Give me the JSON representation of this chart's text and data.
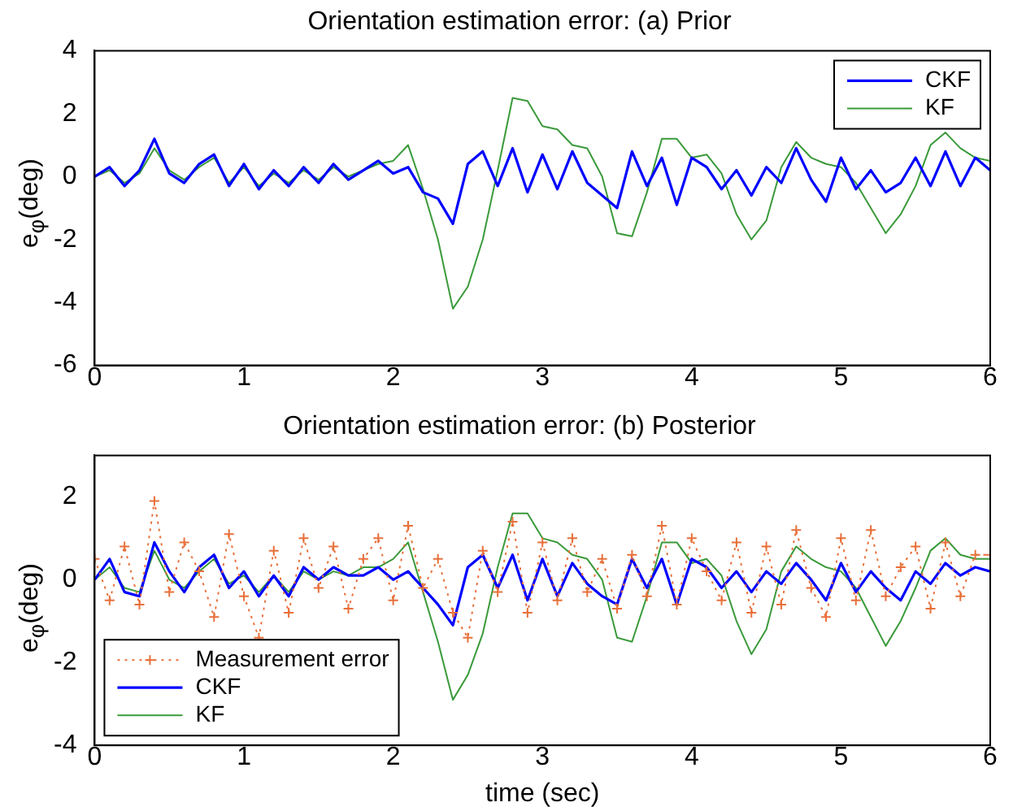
{
  "chart_data": [
    {
      "type": "line",
      "title": "Orientation estimation error: (a) Prior",
      "ylabel": "e$_{φ}$(deg)",
      "x": [
        0,
        0.1,
        0.2,
        0.3,
        0.4,
        0.5,
        0.6,
        0.7,
        0.8,
        0.9,
        1,
        1.1,
        1.2,
        1.3,
        1.4,
        1.5,
        1.6,
        1.7,
        1.8,
        1.9,
        2,
        2.1,
        2.2,
        2.3,
        2.4,
        2.5,
        2.6,
        2.7,
        2.8,
        2.9,
        3,
        3.1,
        3.2,
        3.3,
        3.4,
        3.5,
        3.6,
        3.7,
        3.8,
        3.9,
        4,
        4.1,
        4.2,
        4.3,
        4.4,
        4.5,
        4.6,
        4.7,
        4.8,
        4.9,
        5,
        5.1,
        5.2,
        5.3,
        5.4,
        5.5,
        5.6,
        5.7,
        5.8,
        5.9,
        6
      ],
      "xlim": [
        0,
        6
      ],
      "xticks": [
        0,
        1,
        2,
        3,
        4,
        5,
        6
      ],
      "ylim": [
        -6,
        4
      ],
      "yticks": [
        -6,
        -4,
        -2,
        0,
        2,
        4
      ],
      "grid": false,
      "legend": "top right",
      "marker": "none",
      "line_style": "solid",
      "series": [
        {
          "name": "CKF",
          "color": "#0000ff",
          "values": [
            0,
            0.3,
            -0.3,
            0.2,
            1.2,
            0.1,
            -0.2,
            0.4,
            0.7,
            -0.3,
            0.4,
            -0.4,
            0.2,
            -0.3,
            0.3,
            -0.2,
            0.4,
            -0.1,
            0.2,
            0.5,
            0.1,
            0.3,
            -0.5,
            -0.7,
            -1.5,
            0.4,
            0.8,
            -0.3,
            0.9,
            -0.5,
            0.7,
            -0.4,
            0.8,
            -0.2,
            -0.6,
            -1.0,
            0.8,
            -0.3,
            0.6,
            -0.9,
            0.6,
            0.3,
            -0.4,
            0.2,
            -0.6,
            0.3,
            -0.2,
            0.9,
            -0.1,
            -0.8,
            0.6,
            -0.4,
            0.2,
            -0.5,
            -0.2,
            0.6,
            -0.3,
            0.8,
            -0.3,
            0.6,
            0.2
          ]
        },
        {
          "name": "KF",
          "color": "#3a9a3a",
          "values": [
            0,
            0.2,
            -0.2,
            0.1,
            0.9,
            0.2,
            -0.1,
            0.3,
            0.6,
            -0.2,
            0.3,
            -0.3,
            0.1,
            -0.2,
            0.2,
            -0.1,
            0.3,
            0,
            0.2,
            0.4,
            0.5,
            1.0,
            -0.4,
            -2.0,
            -4.2,
            -3.5,
            -2.0,
            0.2,
            2.5,
            2.4,
            1.6,
            1.5,
            1.0,
            0.9,
            0,
            -1.8,
            -1.9,
            -0.5,
            1.2,
            1.2,
            0.6,
            0.7,
            0.1,
            -1.2,
            -2.0,
            -1.4,
            0.3,
            1.1,
            0.6,
            0.4,
            0.3,
            -0.2,
            -1.0,
            -1.8,
            -1.2,
            -0.3,
            1.0,
            1.4,
            0.9,
            0.6,
            0.5
          ]
        }
      ]
    },
    {
      "type": "line",
      "title": "Orientation estimation error: (b) Posterior",
      "ylabel": "e$_{φ}$(deg)",
      "xlabel": "time (sec)",
      "x": [
        0,
        0.1,
        0.2,
        0.3,
        0.4,
        0.5,
        0.6,
        0.7,
        0.8,
        0.9,
        1,
        1.1,
        1.2,
        1.3,
        1.4,
        1.5,
        1.6,
        1.7,
        1.8,
        1.9,
        2,
        2.1,
        2.2,
        2.3,
        2.4,
        2.5,
        2.6,
        2.7,
        2.8,
        2.9,
        3,
        3.1,
        3.2,
        3.3,
        3.4,
        3.5,
        3.6,
        3.7,
        3.8,
        3.9,
        4,
        4.1,
        4.2,
        4.3,
        4.4,
        4.5,
        4.6,
        4.7,
        4.8,
        4.9,
        5,
        5.1,
        5.2,
        5.3,
        5.4,
        5.5,
        5.6,
        5.7,
        5.8,
        5.9,
        6
      ],
      "xlim": [
        0,
        6
      ],
      "xticks": [
        0,
        1,
        2,
        3,
        4,
        5,
        6
      ],
      "ylim": [
        -4,
        3
      ],
      "yticks": [
        -4,
        -2,
        0,
        2
      ],
      "grid": false,
      "legend": "bottom left",
      "marker": "none",
      "line_style": "solid",
      "series": [
        {
          "name": "Measurement error",
          "color": "#e8703a",
          "marker": "cross",
          "line_style": "dotted",
          "values": [
            0.5,
            -0.5,
            0.8,
            -0.6,
            1.9,
            -0.3,
            0.9,
            0.2,
            -0.9,
            1.1,
            -0.4,
            -1.4,
            0.7,
            -0.8,
            1.0,
            -0.2,
            0.8,
            -0.7,
            0.5,
            1.0,
            -0.5,
            1.3,
            -0.2,
            0.5,
            -0.8,
            -1.4,
            0.7,
            -0.3,
            1.4,
            -0.8,
            0.9,
            -0.5,
            1.0,
            -0.3,
            0.5,
            -0.7,
            0.6,
            -0.4,
            1.3,
            -0.6,
            1.0,
            0.2,
            -0.5,
            0.9,
            -0.8,
            0.8,
            -0.6,
            1.2,
            -0.2,
            -0.9,
            1.0,
            -0.5,
            1.2,
            -0.4,
            0.3,
            0.8,
            -0.7,
            0.9,
            -0.4,
            0.6,
            0.6
          ]
        },
        {
          "name": "CKF",
          "color": "#0000ff",
          "values": [
            0,
            0.5,
            -0.3,
            -0.4,
            0.9,
            0.2,
            -0.3,
            0.3,
            0.6,
            -0.2,
            0.2,
            -0.4,
            0.1,
            -0.4,
            0.3,
            0,
            0.3,
            0.1,
            0.1,
            0.3,
            0,
            0.2,
            -0.2,
            -0.6,
            -1.1,
            0.3,
            0.6,
            -0.2,
            0.6,
            -0.5,
            0.5,
            -0.4,
            0.4,
            -0.1,
            -0.4,
            -0.6,
            0.5,
            -0.2,
            0.5,
            -0.6,
            0.5,
            0.3,
            -0.2,
            0.2,
            -0.3,
            0.2,
            -0.1,
            0.4,
            0,
            -0.5,
            0.4,
            -0.3,
            0.2,
            -0.2,
            -0.5,
            0.2,
            -0.1,
            0.4,
            0.1,
            0.3,
            0.2
          ]
        },
        {
          "name": "KF",
          "color": "#3a9a3a",
          "values": [
            0,
            0.3,
            -0.2,
            -0.3,
            0.7,
            0.0,
            -0.2,
            0.2,
            0.5,
            -0.1,
            0.1,
            -0.3,
            0.1,
            -0.3,
            0.2,
            0,
            0.2,
            0.1,
            0.3,
            0.3,
            0.5,
            0.9,
            -0.3,
            -1.5,
            -2.9,
            -2.3,
            -1.3,
            0.3,
            1.6,
            1.6,
            1.0,
            0.9,
            0.6,
            0.5,
            0,
            -1.4,
            -1.5,
            -0.4,
            0.9,
            0.9,
            0.4,
            0.5,
            0.1,
            -1.0,
            -1.8,
            -1.2,
            0.2,
            0.8,
            0.5,
            0.3,
            0.2,
            -0.2,
            -0.9,
            -1.6,
            -1.0,
            -0.2,
            0.7,
            1.0,
            0.6,
            0.5,
            0.5
          ]
        }
      ]
    }
  ]
}
